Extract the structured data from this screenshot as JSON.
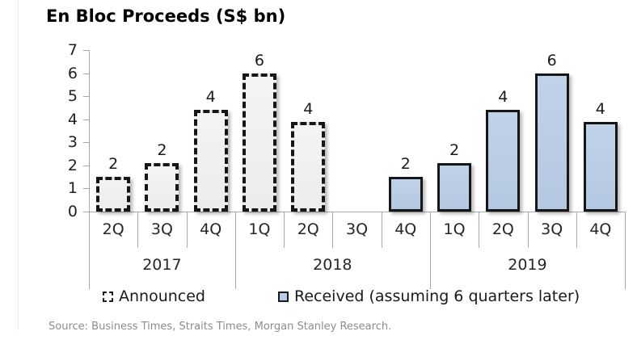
{
  "title": "En Bloc Proceeds (S$ bn)",
  "source": "Source: Business Times, Straits Times, Morgan Stanley Research.",
  "legend": {
    "announced": "Announced",
    "received": "Received (assuming 6 quarters later)"
  },
  "colors": {
    "announced_fill": "#f1f1ee",
    "received_fill": "#b9cce4",
    "bar_border": "#161616",
    "axis_line": "#a8a8a8",
    "label_text": "#1f1f1f",
    "source_text": "#8c8c8c"
  },
  "chart_data": {
    "type": "bar",
    "title": "En Bloc Proceeds (S$ bn)",
    "xlabel": "",
    "ylabel": "",
    "ylim": [
      0,
      7
    ],
    "yticks": [
      0,
      1,
      2,
      3,
      4,
      5,
      6,
      7
    ],
    "grid": false,
    "legend_position": "bottom",
    "categories": [
      "2Q",
      "3Q",
      "4Q",
      "1Q",
      "2Q",
      "3Q",
      "4Q",
      "1Q",
      "2Q",
      "3Q",
      "4Q"
    ],
    "year_groups": [
      {
        "label": "2017",
        "span": 3
      },
      {
        "label": "2018",
        "span": 4
      },
      {
        "label": "2019",
        "span": 4
      }
    ],
    "series": [
      {
        "name": "Announced",
        "key": "announced",
        "style": "dashed",
        "values": [
          1.5,
          2.1,
          4.4,
          6.0,
          3.9,
          null,
          null,
          null,
          null,
          null,
          null
        ],
        "labels": [
          "2",
          "2",
          "4",
          "6",
          "4",
          "",
          "",
          "",
          "",
          "",
          ""
        ]
      },
      {
        "name": "Received (assuming 6 quarters later)",
        "key": "received",
        "style": "solid",
        "values": [
          null,
          null,
          null,
          null,
          null,
          null,
          1.5,
          2.1,
          4.4,
          6.0,
          3.9
        ],
        "labels": [
          "",
          "",
          "",
          "",
          "",
          "",
          "2",
          "2",
          "4",
          "6",
          "4"
        ]
      }
    ]
  }
}
